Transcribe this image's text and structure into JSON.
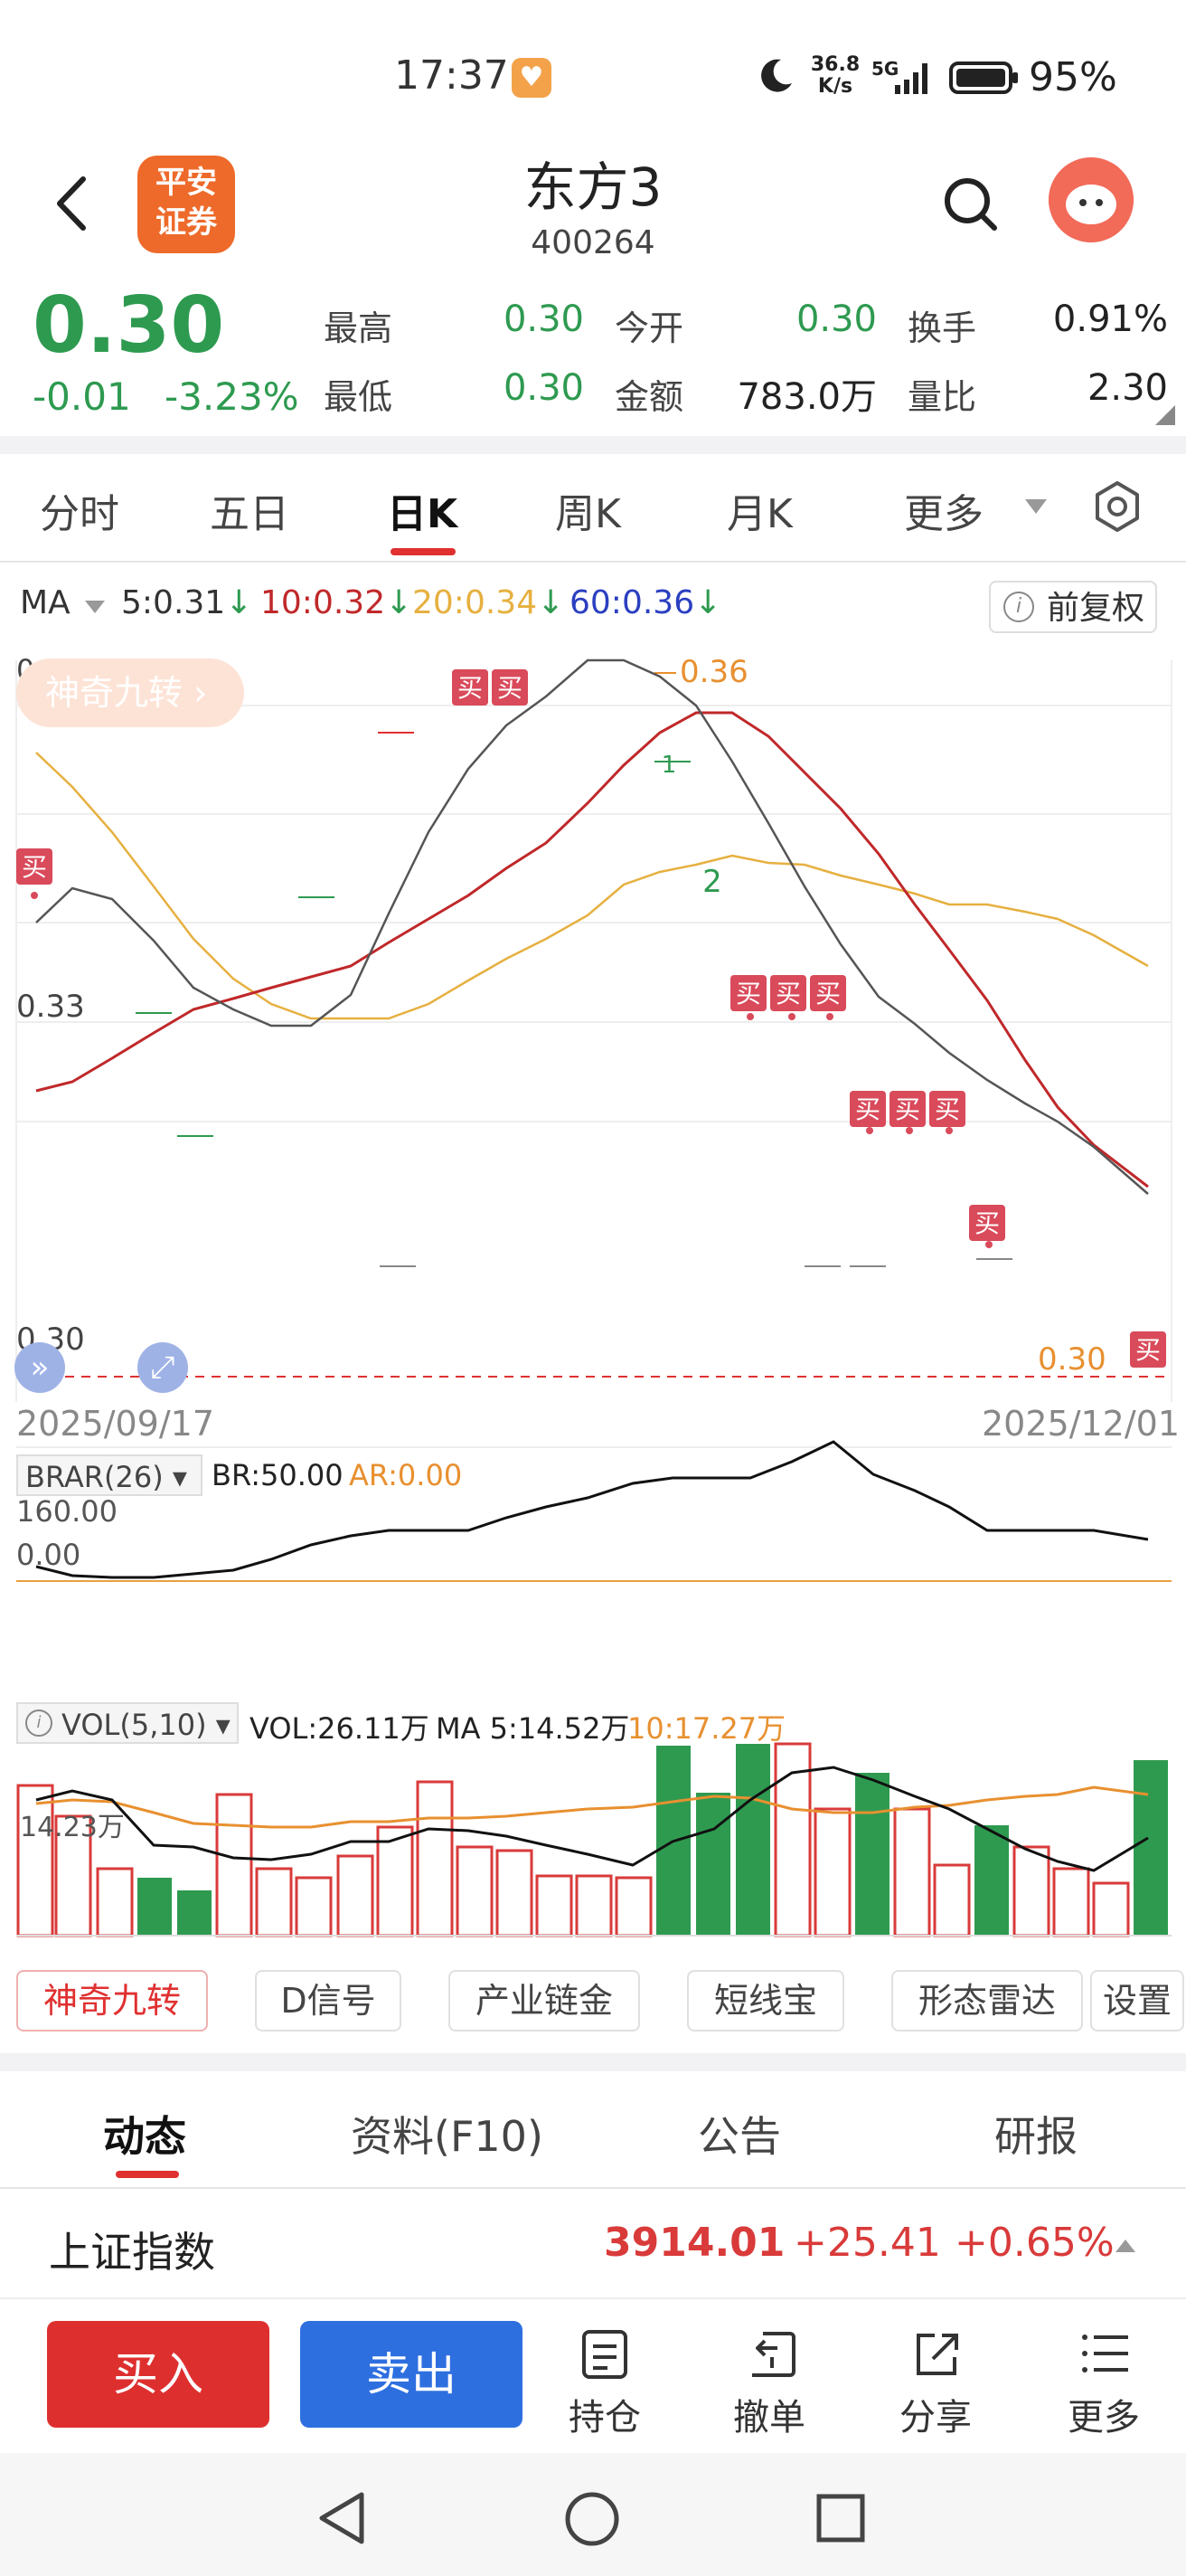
{
  "status_bar": {
    "time": "17:37",
    "net_speed_top": "36.8",
    "net_speed_bottom": "K/s",
    "network": "5G",
    "battery": "95%"
  },
  "header": {
    "logo_line1": "平安",
    "logo_line2": "证券",
    "stock_name": "东方3",
    "stock_code": "400264"
  },
  "quote": {
    "price": "0.30",
    "change": "-0.01",
    "change_pct": "-3.23%",
    "items": [
      {
        "label": "最高",
        "value": "0.30",
        "color": "green"
      },
      {
        "label": "今开",
        "value": "0.30",
        "color": "green"
      },
      {
        "label": "换手",
        "value": "0.91%",
        "color": "dark"
      },
      {
        "label": "最低",
        "value": "0.30",
        "color": "green"
      },
      {
        "label": "金额",
        "value": "783.0万",
        "color": "dark"
      },
      {
        "label": "量比",
        "value": "2.30",
        "color": "dark"
      }
    ]
  },
  "tabs": [
    "分时",
    "五日",
    "日K",
    "周K",
    "月K",
    "更多"
  ],
  "active_tab": "日K",
  "ma_bar": {
    "label": "MA",
    "ma5": "5:0.31",
    "ma10": "10:0.32",
    "ma20": "20:0.34",
    "ma60": "60:0.36",
    "fuquan": "前复权"
  },
  "kchart": {
    "magic_label": "神奇九转",
    "y_high": "0.36",
    "y_mid": "0.33",
    "y_low": "0.30",
    "last_price_label": "0.30",
    "high_marker": "0.36",
    "date_start": "2025/09/17",
    "date_end": "2025/12/01",
    "buy_label": "买",
    "nine_1": "1",
    "nine_2": "2"
  },
  "brar": {
    "name": "BRAR(26)",
    "br": "BR:50.00",
    "ar": "AR:0.00",
    "y_top": "160.00",
    "y_bottom": "0.00"
  },
  "vol": {
    "name": "VOL(5,10)",
    "vol": "VOL:26.11万",
    "ma5": "MA 5:14.52万",
    "ma10": "10:17.27万",
    "y_label": "14.23万"
  },
  "tools": [
    "神奇九转",
    "D信号",
    "产业链金",
    "短线宝",
    "形态雷达",
    "设置"
  ],
  "bottom_tabs": [
    "动态",
    "资料(F10)",
    "公告",
    "研报"
  ],
  "index": {
    "name": "上证指数",
    "value": "3914.01",
    "change": "+25.41",
    "change_pct": "+0.65%"
  },
  "actions": {
    "buy": "买入",
    "sell": "卖出",
    "position": "持仓",
    "cancel": "撤单",
    "share": "分享",
    "more": "更多"
  },
  "colors": {
    "up_red": "#d93a3a",
    "down_green": "#2e9a50",
    "ma5": "#555555",
    "ma10": "#c0282a",
    "ma20": "#e6b040",
    "ma60": "#2a3fc0",
    "accent_orange": "#e89030"
  }
}
